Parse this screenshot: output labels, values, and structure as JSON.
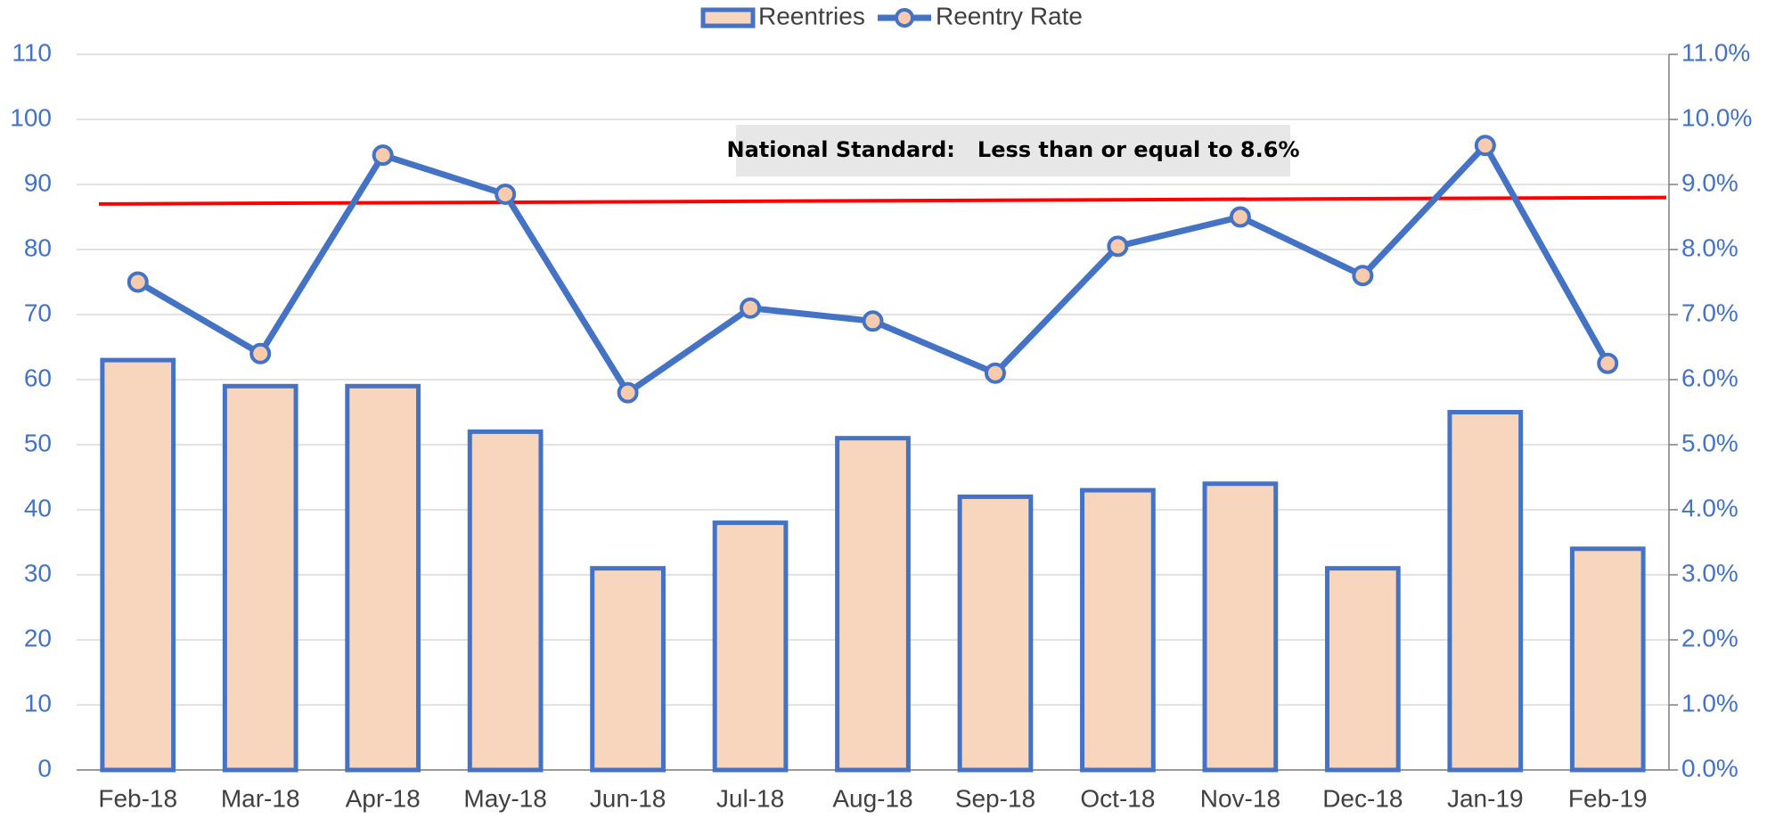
{
  "chart_data": {
    "type": "bar_line",
    "categories": [
      "Feb-18",
      "Mar-18",
      "Apr-18",
      "May-18",
      "Jun-18",
      "Jul-18",
      "Aug-18",
      "Sep-18",
      "Oct-18",
      "Nov-18",
      "Dec-18",
      "Jan-19",
      "Feb-19"
    ],
    "series": [
      {
        "name": "Reentries",
        "type": "bar",
        "color": "#4472c4",
        "fill": "#f8d5bd",
        "values": [
          63,
          59,
          59,
          52,
          31,
          38,
          51,
          42,
          43,
          44,
          31,
          55,
          34
        ]
      },
      {
        "name": "Reentry Rate",
        "type": "line",
        "axis": "y2",
        "color": "#4472c4",
        "marker_fill": "#f8cbad",
        "values": [
          7.5,
          6.4,
          9.45,
          8.85,
          5.8,
          7.1,
          6.9,
          6.1,
          8.05,
          8.5,
          7.6,
          9.6,
          6.25
        ]
      }
    ],
    "ylim": [
      0,
      110
    ],
    "yticks": [
      0,
      10,
      20,
      30,
      40,
      50,
      60,
      70,
      80,
      90,
      100,
      110
    ],
    "y2lim": [
      0,
      11
    ],
    "y2ticks": [
      {
        "value": 0,
        "label": "0.0%"
      },
      {
        "value": 1,
        "label": "1.0%"
      },
      {
        "value": 2,
        "label": "2.0%"
      },
      {
        "value": 3,
        "label": "3.0%"
      },
      {
        "value": 4,
        "label": "4.0%"
      },
      {
        "value": 5,
        "label": "5.0%"
      },
      {
        "value": 6,
        "label": "6.0%"
      },
      {
        "value": 7,
        "label": "7.0%"
      },
      {
        "value": 8,
        "label": "8.0%"
      },
      {
        "value": 9,
        "label": "9.0%"
      },
      {
        "value": 10,
        "label": "10.0%"
      },
      {
        "value": 11,
        "label": "11.0%"
      }
    ],
    "grid": true,
    "legend": "top",
    "reference_line": {
      "axis": "y2",
      "color": "#ff0000",
      "values": [
        8.7,
        8.8
      ]
    },
    "annotation": "National Standard:   Less than or equal to 8.6%"
  }
}
